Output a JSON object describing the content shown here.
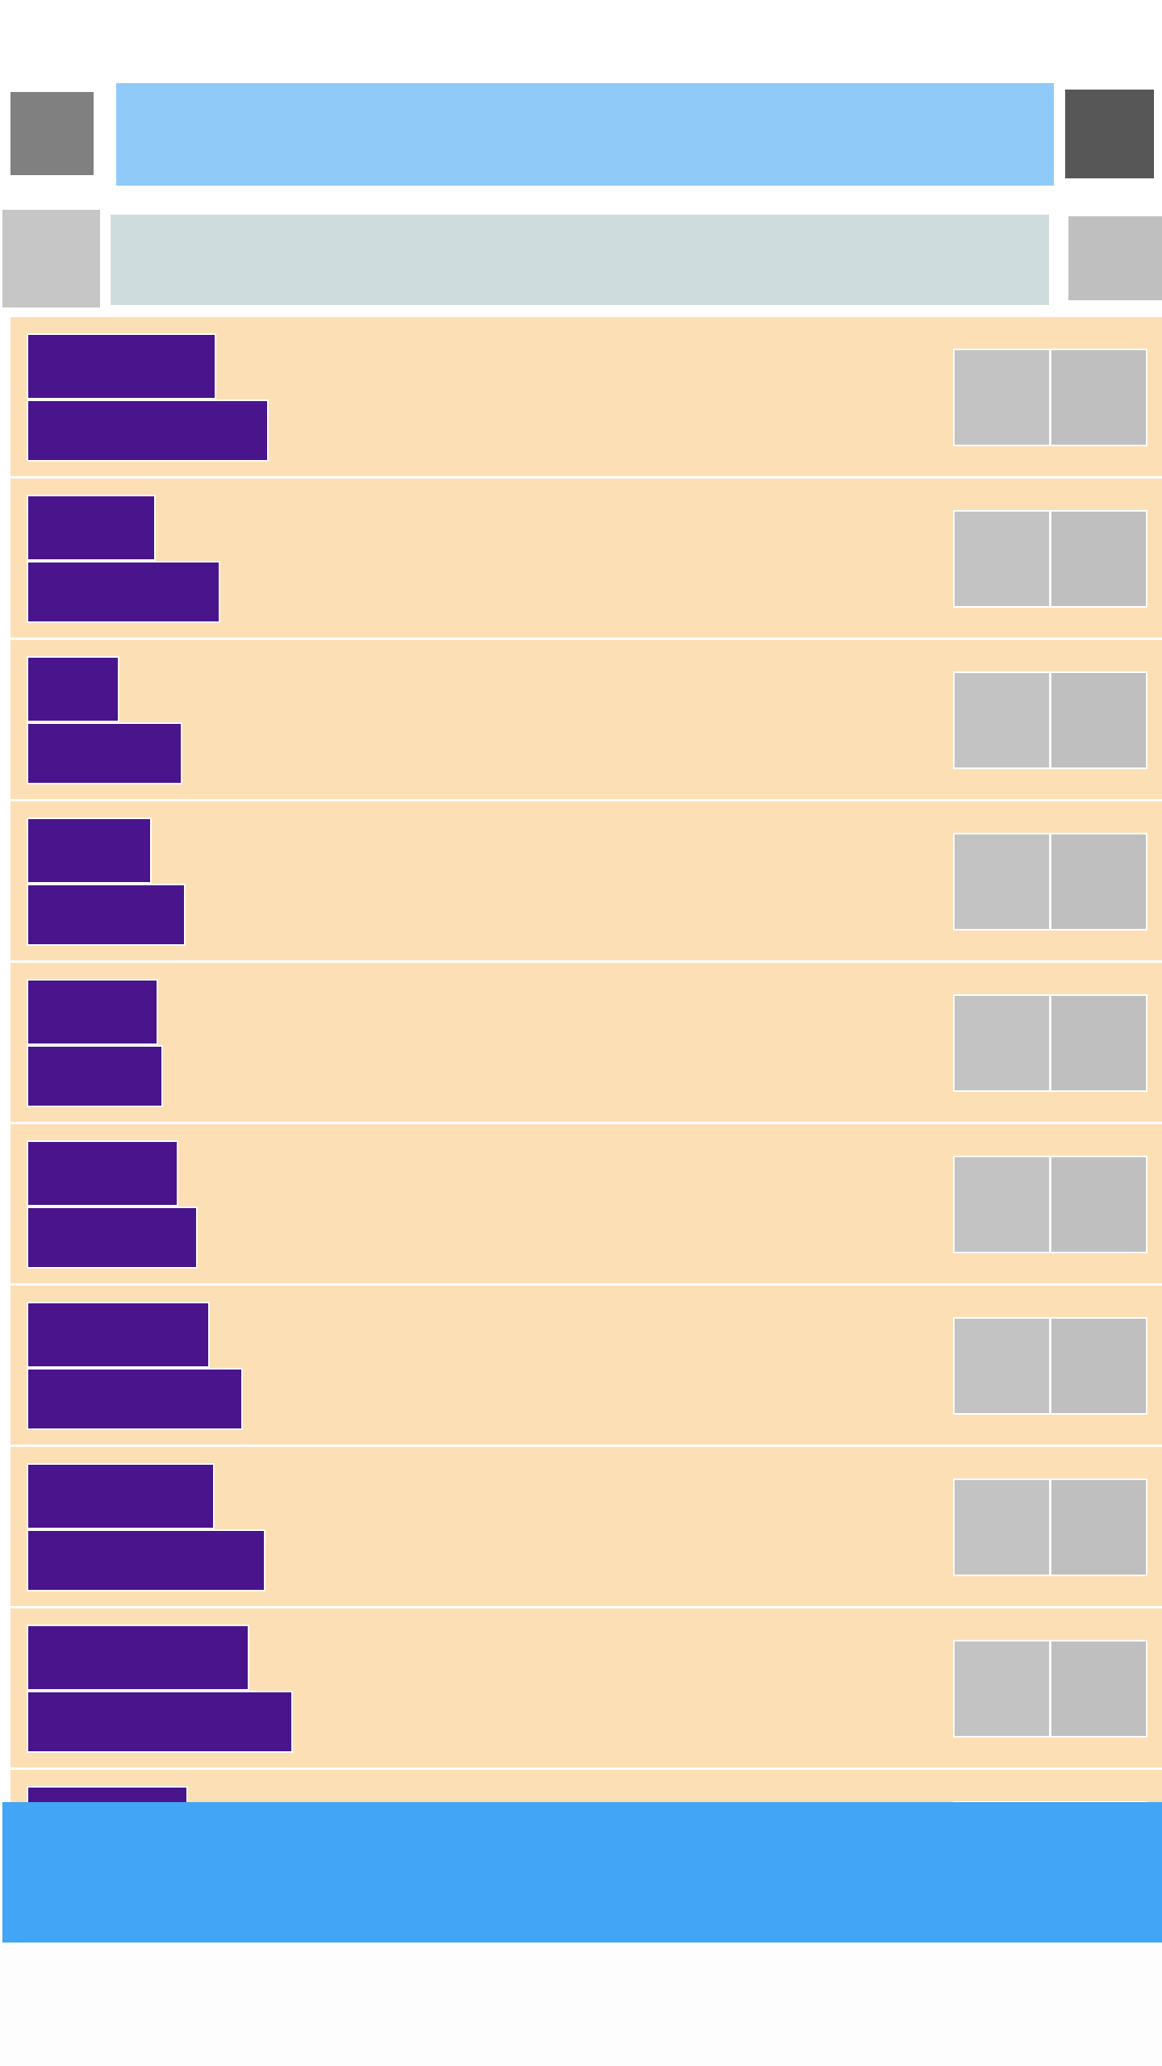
{
  "header": {
    "title": "",
    "left_icon": "menu-icon",
    "right_icon": "more-icon"
  },
  "search": {
    "placeholder": "",
    "left_icon": "back-icon",
    "right_icon": "filter-icon"
  },
  "list": {
    "items": [
      {
        "title": "",
        "subtitle": "",
        "actions": [
          "edit-icon",
          "delete-icon"
        ]
      },
      {
        "title": "",
        "subtitle": "",
        "actions": [
          "edit-icon",
          "delete-icon"
        ]
      },
      {
        "title": "",
        "subtitle": "",
        "actions": [
          "edit-icon",
          "delete-icon"
        ]
      },
      {
        "title": "",
        "subtitle": "",
        "actions": [
          "edit-icon",
          "delete-icon"
        ]
      },
      {
        "title": "",
        "subtitle": "",
        "actions": [
          "edit-icon",
          "delete-icon"
        ]
      },
      {
        "title": "",
        "subtitle": "",
        "actions": [
          "edit-icon",
          "delete-icon"
        ]
      },
      {
        "title": "",
        "subtitle": "",
        "actions": [
          "edit-icon",
          "delete-icon"
        ]
      },
      {
        "title": "",
        "subtitle": "",
        "actions": [
          "edit-icon",
          "delete-icon"
        ]
      },
      {
        "title": "",
        "subtitle": "",
        "actions": [
          "edit-icon",
          "delete-icon"
        ]
      },
      {
        "title": "",
        "subtitle": "",
        "actions": [
          "edit-icon",
          "delete-icon"
        ]
      }
    ]
  },
  "footer": {
    "label": ""
  },
  "colors": {
    "header_bar": "#90caf9",
    "search_field": "#cfdcdd",
    "row_background": "#fddfb5",
    "text_block": "#4a148c",
    "action_button": "#c4c3c4",
    "footer_bar": "#42a5f5"
  }
}
